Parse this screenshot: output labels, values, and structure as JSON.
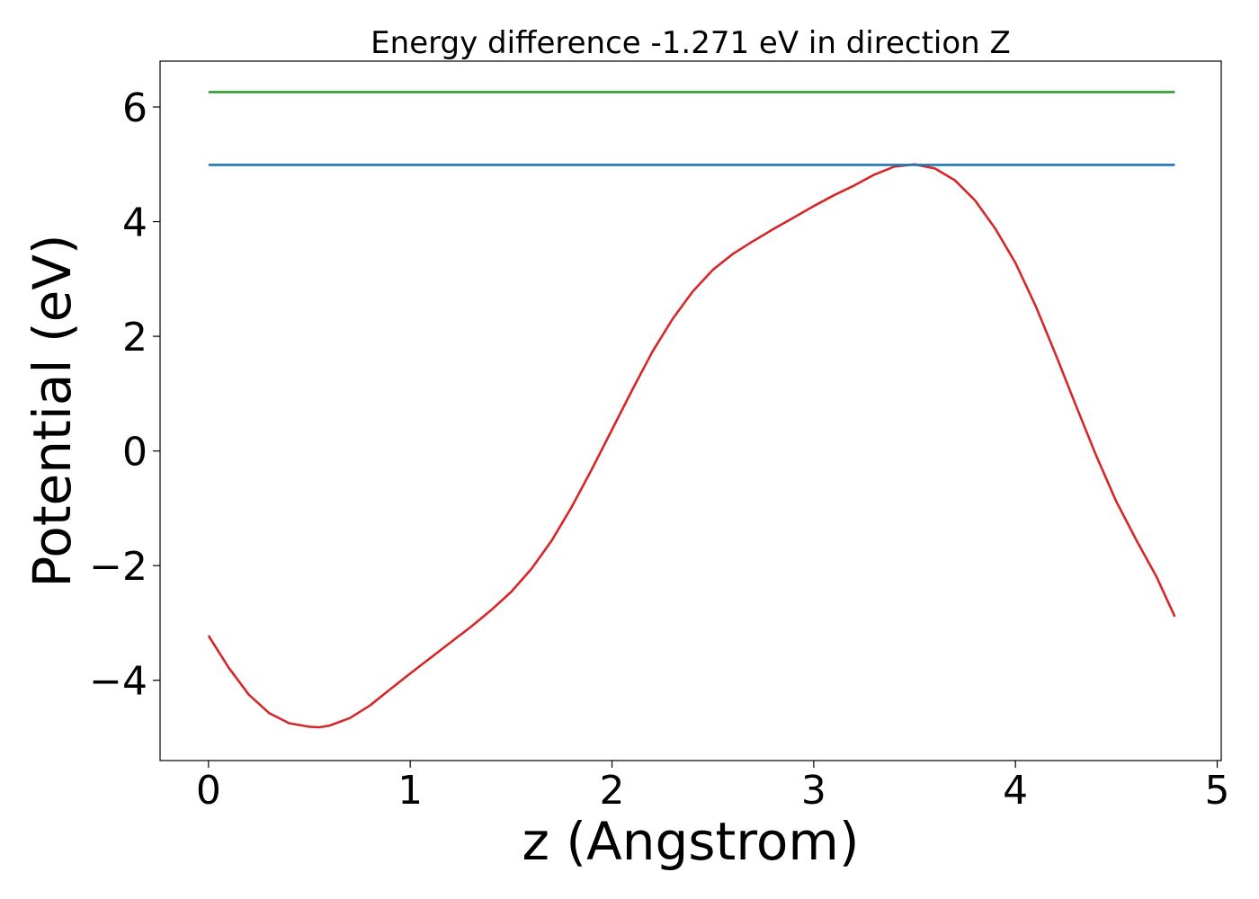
{
  "chart_data": {
    "type": "line",
    "title": "Energy difference -1.271 eV in direction Z",
    "xlabel": "z (Angstrom)",
    "ylabel": "Potential (eV)",
    "xlim": [
      -0.24,
      5.02
    ],
    "ylim": [
      -5.4,
      6.8
    ],
    "xticks": [
      0,
      1,
      2,
      3,
      4,
      5
    ],
    "xtick_labels": [
      "0",
      "1",
      "2",
      "3",
      "4",
      "5"
    ],
    "yticks": [
      -4,
      -2,
      0,
      2,
      4,
      6
    ],
    "ytick_labels": [
      "−4",
      "−2",
      "0",
      "2",
      "4",
      "6"
    ],
    "grid": false,
    "series": [
      {
        "color": "#d62728",
        "x": [
          0.0,
          0.1,
          0.2,
          0.3,
          0.4,
          0.5,
          0.55,
          0.6,
          0.7,
          0.8,
          0.9,
          1.0,
          1.1,
          1.2,
          1.3,
          1.4,
          1.5,
          1.6,
          1.7,
          1.8,
          1.9,
          2.0,
          2.1,
          2.2,
          2.3,
          2.4,
          2.5,
          2.6,
          2.7,
          2.8,
          2.9,
          3.0,
          3.1,
          3.2,
          3.3,
          3.4,
          3.5,
          3.6,
          3.7,
          3.8,
          3.9,
          4.0,
          4.1,
          4.2,
          4.3,
          4.4,
          4.5,
          4.6,
          4.7,
          4.79
        ],
        "y": [
          -3.22,
          -3.78,
          -4.25,
          -4.57,
          -4.75,
          -4.81,
          -4.82,
          -4.79,
          -4.66,
          -4.44,
          -4.16,
          -3.88,
          -3.61,
          -3.34,
          -3.07,
          -2.78,
          -2.46,
          -2.06,
          -1.57,
          -0.98,
          -0.32,
          0.37,
          1.06,
          1.73,
          2.3,
          2.78,
          3.16,
          3.44,
          3.66,
          3.87,
          4.07,
          4.27,
          4.46,
          4.63,
          4.82,
          4.96,
          5.0,
          4.93,
          4.72,
          4.37,
          3.88,
          3.28,
          2.53,
          1.68,
          0.79,
          -0.08,
          -0.88,
          -1.56,
          -2.2,
          -2.89
        ]
      },
      {
        "color": "#1f77b4",
        "x": [
          0.0,
          4.79
        ],
        "y": [
          4.99,
          4.99
        ]
      },
      {
        "color": "#2ca02c",
        "x": [
          0.0,
          4.79
        ],
        "y": [
          6.26,
          6.26
        ]
      }
    ]
  }
}
